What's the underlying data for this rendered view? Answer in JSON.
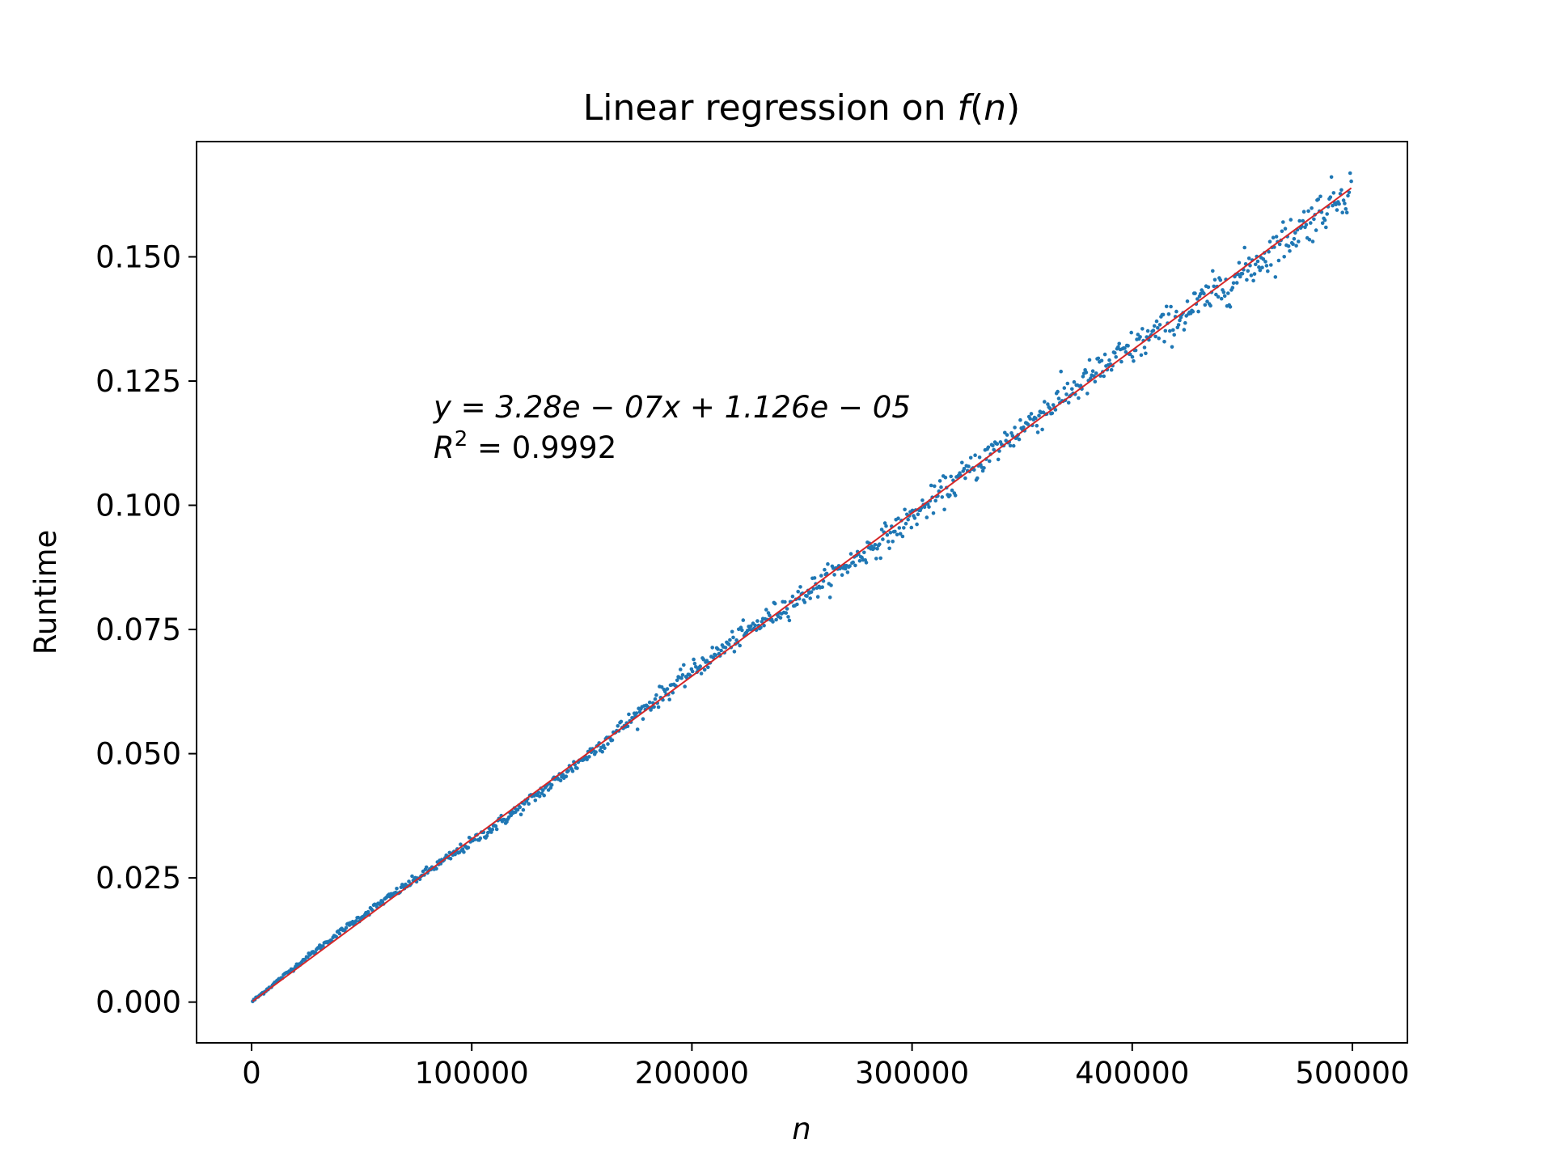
{
  "chart_data": {
    "type": "scatter",
    "title_prefix": "Linear regression on ",
    "title_fn": "f",
    "title_paren_open": "(",
    "title_arg": "n",
    "title_paren_close": ")",
    "xlabel": "n",
    "ylabel": "Runtime",
    "xlim": [
      -25000,
      525000
    ],
    "ylim": [
      -0.0082,
      0.1732
    ],
    "x_ticks": [
      0,
      100000,
      200000,
      300000,
      400000,
      500000
    ],
    "x_tick_labels": [
      "0",
      "100000",
      "200000",
      "300000",
      "400000",
      "500000"
    ],
    "y_ticks": [
      0.0,
      0.025,
      0.05,
      0.075,
      0.1,
      0.125,
      0.15
    ],
    "y_tick_labels": [
      "0.000",
      "0.025",
      "0.050",
      "0.075",
      "0.100",
      "0.125",
      "0.150"
    ],
    "grid": false,
    "series": [
      {
        "kind": "scatter",
        "color": "#1f77b4",
        "x_start": 500,
        "x_end": 499500,
        "n_points": 1000,
        "approx_relation": "y ≈ 3.28e-07 x + 1.126e-05 (with noise)"
      },
      {
        "kind": "line",
        "color": "#d62728",
        "slope": 3.28e-07,
        "intercept": 1.126e-05,
        "x_range": [
          500,
          499500
        ]
      }
    ],
    "annotation": {
      "line1": "y = 3.28e − 07x + 1.126e − 05",
      "line2_prefix": "R",
      "line2_sup": "2",
      "line2_rest": " = 0.9992"
    }
  }
}
